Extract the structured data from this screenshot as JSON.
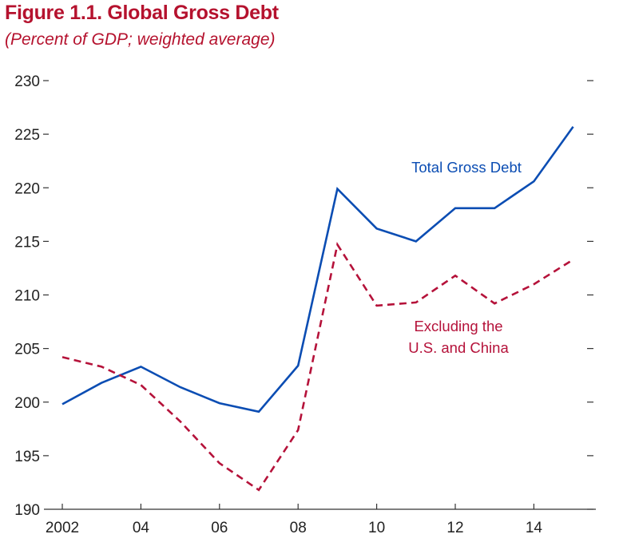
{
  "title": "Figure 1.1. Global Gross Debt",
  "subtitle": "(Percent of GDP; weighted average)",
  "chart_data": {
    "type": "line",
    "title": "Figure 1.1. Global Gross Debt",
    "subtitle": "(Percent of GDP; weighted average)",
    "x": [
      2002,
      2003,
      2004,
      2005,
      2006,
      2007,
      2008,
      2009,
      2010,
      2011,
      2012,
      2013,
      2014,
      2015
    ],
    "x_tick_values": [
      2002,
      2004,
      2006,
      2008,
      2010,
      2012,
      2014
    ],
    "x_tick_labels": [
      "2002",
      "04",
      "06",
      "08",
      "10",
      "12",
      "14"
    ],
    "ylim": [
      190,
      230
    ],
    "y_ticks": [
      190,
      195,
      200,
      205,
      210,
      215,
      220,
      225,
      230
    ],
    "y_tick_labels": [
      "190",
      "195",
      "200",
      "205",
      "210",
      "215",
      "220",
      "225",
      "230"
    ],
    "grid": false,
    "series": [
      {
        "name": "Total Gross Debt",
        "label_lines": [
          "Total Gross Debt"
        ],
        "color": "#0b4db3",
        "style": "solid",
        "values": [
          199.8,
          201.8,
          203.3,
          201.4,
          199.9,
          199.1,
          203.4,
          219.9,
          216.2,
          215.0,
          218.1,
          218.1,
          220.6,
          225.7
        ]
      },
      {
        "name": "Excluding the U.S. and China",
        "label_lines": [
          "Excluding the",
          "U.S. and China"
        ],
        "color": "#b5123a",
        "style": "dashed",
        "values": [
          204.2,
          203.3,
          201.6,
          198.2,
          194.3,
          191.8,
          197.4,
          214.7,
          209.0,
          209.3,
          211.8,
          209.2,
          211.0,
          213.3
        ]
      }
    ]
  }
}
